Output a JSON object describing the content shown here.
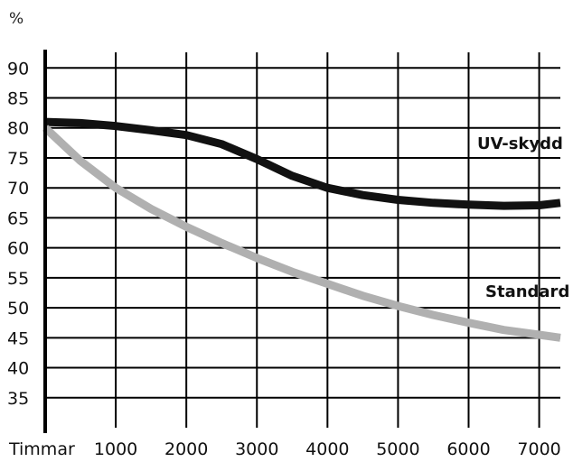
{
  "chart_data": {
    "type": "line",
    "title": "",
    "ylabel": "%",
    "xlabel": "Timmar",
    "xlim": [
      0,
      7300
    ],
    "ylim": [
      30,
      92
    ],
    "x_ticks": [
      1000,
      2000,
      3000,
      4000,
      5000,
      6000,
      7000
    ],
    "y_ticks": [
      35,
      40,
      45,
      50,
      55,
      60,
      65,
      70,
      75,
      80,
      85,
      90
    ],
    "grid": true,
    "series": [
      {
        "name": "UV-skydd",
        "color": "#111111",
        "x": [
          0,
          500,
          1000,
          1500,
          2000,
          2500,
          3000,
          3500,
          4000,
          4500,
          5000,
          5500,
          6000,
          6500,
          7000,
          7300
        ],
        "y": [
          81,
          80.8,
          80.3,
          79.6,
          78.8,
          77.3,
          74.8,
          72.0,
          70.0,
          68.8,
          68.0,
          67.5,
          67.2,
          67.0,
          67.1,
          67.5
        ]
      },
      {
        "name": "Standard",
        "color": "#b0b0b0",
        "x": [
          0,
          500,
          1000,
          1500,
          2000,
          2500,
          3000,
          3500,
          4000,
          4500,
          5000,
          5500,
          6000,
          6500,
          7000,
          7300
        ],
        "y": [
          80,
          74.5,
          70.0,
          66.5,
          63.5,
          60.8,
          58.3,
          56.0,
          54.0,
          52.0,
          50.3,
          48.8,
          47.5,
          46.3,
          45.5,
          45.0
        ]
      }
    ]
  }
}
